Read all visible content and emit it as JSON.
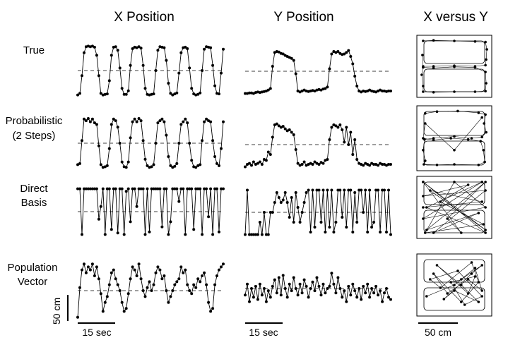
{
  "figure": {
    "column_titles": [
      "X Position",
      "Y Position",
      "X versus Y"
    ],
    "row_labels": [
      [
        "True"
      ],
      [
        "Probabilistic",
        "(2 Steps)"
      ],
      [
        "Direct",
        "Basis"
      ],
      [
        "Population",
        "Vector"
      ]
    ],
    "scale_bars": {
      "vertical": "50 cm",
      "time_x": "15 sec",
      "time_y": "15 sec",
      "space": "50 cm"
    }
  },
  "chart_data": [
    {
      "type": "line",
      "panel": "True / X Position",
      "title": "X Position",
      "x": [
        0,
        1,
        2,
        3,
        4,
        5,
        6,
        7,
        8,
        9,
        10,
        11,
        12,
        13,
        14,
        15,
        16,
        17,
        18,
        19,
        20,
        21,
        22,
        23,
        24,
        25,
        26,
        27,
        28,
        29,
        30,
        31,
        32,
        33,
        34,
        35,
        36,
        37,
        38,
        39,
        40,
        41,
        42,
        43,
        44,
        45,
        46,
        47,
        48,
        49,
        50,
        51,
        52,
        53,
        54,
        55,
        56,
        57,
        58,
        59,
        60,
        61,
        62,
        63,
        64,
        65,
        66,
        67,
        68,
        69
      ],
      "values": [
        0.02,
        0.05,
        0.4,
        0.85,
        0.97,
        0.98,
        0.97,
        0.98,
        0.96,
        0.8,
        0.4,
        0.05,
        0.02,
        0.03,
        0.04,
        0.3,
        0.8,
        0.96,
        0.97,
        0.9,
        0.55,
        0.15,
        0.03,
        0.03,
        0.1,
        0.6,
        0.93,
        0.96,
        0.95,
        0.97,
        0.94,
        0.6,
        0.15,
        0.03,
        0.02,
        0.03,
        0.04,
        0.5,
        0.9,
        0.97,
        0.96,
        0.95,
        0.7,
        0.25,
        0.05,
        0.02,
        0.04,
        0.06,
        0.45,
        0.85,
        0.95,
        0.96,
        0.93,
        0.55,
        0.15,
        0.04,
        0.02,
        0.03,
        0.06,
        0.5,
        0.92,
        0.97,
        0.96,
        0.95,
        0.6,
        0.2,
        0.05,
        0.04,
        0.45,
        0.92
      ],
      "ylim": [
        0,
        1
      ]
    },
    {
      "type": "line",
      "panel": "True / Y Position",
      "title": "Y Position",
      "x": [
        0,
        1,
        2,
        3,
        4,
        5,
        6,
        7,
        8,
        9,
        10,
        11,
        12,
        13,
        14,
        15,
        16,
        17,
        18,
        19,
        20,
        21,
        22,
        23,
        24,
        25,
        26,
        27,
        28,
        29,
        30,
        31,
        32,
        33,
        34,
        35,
        36,
        37,
        38,
        39,
        40,
        41,
        42,
        43,
        44,
        45,
        46,
        47,
        48,
        49,
        50,
        51,
        52,
        53,
        54,
        55,
        56,
        57,
        58,
        59,
        60,
        61,
        62,
        63,
        64,
        65,
        66,
        67,
        68,
        69
      ],
      "values": [
        0.05,
        0.05,
        0.06,
        0.06,
        0.05,
        0.07,
        0.08,
        0.07,
        0.08,
        0.09,
        0.1,
        0.12,
        0.15,
        0.6,
        0.88,
        0.9,
        0.89,
        0.86,
        0.85,
        0.82,
        0.8,
        0.78,
        0.76,
        0.72,
        0.45,
        0.1,
        0.08,
        0.1,
        0.12,
        0.1,
        0.09,
        0.1,
        0.11,
        0.1,
        0.12,
        0.13,
        0.12,
        0.14,
        0.15,
        0.18,
        0.55,
        0.85,
        0.9,
        0.88,
        0.9,
        0.86,
        0.84,
        0.85,
        0.88,
        0.92,
        0.8,
        0.65,
        0.4,
        0.2,
        0.1,
        0.08,
        0.1,
        0.09,
        0.1,
        0.12,
        0.1,
        0.09,
        0.08,
        0.1,
        0.12,
        0.1,
        0.1,
        0.09,
        0.1,
        0.1
      ],
      "ylim": [
        0,
        1
      ]
    },
    {
      "type": "line",
      "panel": "Probabilistic (2 Steps) / X Position",
      "x": [
        0,
        1,
        2,
        3,
        4,
        5,
        6,
        7,
        8,
        9,
        10,
        11,
        12,
        13,
        14,
        15,
        16,
        17,
        18,
        19,
        20,
        21,
        22,
        23,
        24,
        25,
        26,
        27,
        28,
        29,
        30,
        31,
        32,
        33,
        34,
        35,
        36,
        37,
        38,
        39,
        40,
        41,
        42,
        43,
        44,
        45,
        46,
        47,
        48,
        49,
        50,
        51,
        52,
        53,
        54,
        55,
        56,
        57,
        58,
        59,
        60,
        61,
        62,
        63,
        64,
        65,
        66,
        67,
        68,
        69
      ],
      "values": [
        0.1,
        0.12,
        0.55,
        0.95,
        0.92,
        0.96,
        0.9,
        0.95,
        0.88,
        0.85,
        0.45,
        0.1,
        0.05,
        0.06,
        0.08,
        0.4,
        0.85,
        0.95,
        0.92,
        0.8,
        0.5,
        0.15,
        0.06,
        0.05,
        0.15,
        0.6,
        0.9,
        0.95,
        0.9,
        0.96,
        0.92,
        0.55,
        0.2,
        0.08,
        0.05,
        0.06,
        0.1,
        0.5,
        0.88,
        0.92,
        0.95,
        0.9,
        0.65,
        0.25,
        0.08,
        0.05,
        0.07,
        0.12,
        0.5,
        0.85,
        0.9,
        0.95,
        0.88,
        0.5,
        0.18,
        0.06,
        0.05,
        0.08,
        0.1,
        0.55,
        0.9,
        0.95,
        0.92,
        0.9,
        0.55,
        0.25,
        0.12,
        0.08,
        0.4,
        0.9
      ],
      "ylim": [
        0,
        1
      ]
    },
    {
      "type": "line",
      "panel": "Probabilistic (2 Steps) / Y Position",
      "x": [
        0,
        1,
        2,
        3,
        4,
        5,
        6,
        7,
        8,
        9,
        10,
        11,
        12,
        13,
        14,
        15,
        16,
        17,
        18,
        19,
        20,
        21,
        22,
        23,
        24,
        25,
        26,
        27,
        28,
        29,
        30,
        31,
        32,
        33,
        34,
        35,
        36,
        37,
        38,
        39,
        40,
        41,
        42,
        43,
        44,
        45,
        46,
        47,
        48,
        49,
        50,
        51,
        52,
        53,
        54,
        55,
        56,
        57,
        58,
        59,
        60,
        61,
        62,
        63,
        64,
        65,
        66,
        67,
        68,
        69
      ],
      "values": [
        0.05,
        0.1,
        0.12,
        0.08,
        0.15,
        0.1,
        0.12,
        0.15,
        0.1,
        0.2,
        0.18,
        0.35,
        0.3,
        0.65,
        0.9,
        0.92,
        0.88,
        0.85,
        0.87,
        0.82,
        0.78,
        0.8,
        0.75,
        0.7,
        0.4,
        0.12,
        0.08,
        0.1,
        0.15,
        0.08,
        0.1,
        0.12,
        0.1,
        0.15,
        0.12,
        0.1,
        0.14,
        0.12,
        0.18,
        0.2,
        0.6,
        0.85,
        0.9,
        0.88,
        0.85,
        0.9,
        0.8,
        0.55,
        0.85,
        0.5,
        0.75,
        0.3,
        0.6,
        0.2,
        0.12,
        0.1,
        0.08,
        0.12,
        0.1,
        0.08,
        0.12,
        0.1,
        0.1,
        0.08,
        0.12,
        0.1,
        0.1,
        0.08,
        0.1,
        0.1
      ],
      "ylim": [
        0,
        1
      ]
    },
    {
      "type": "line",
      "panel": "Direct Basis / X Position",
      "x": [
        0,
        1,
        2,
        3,
        4,
        5,
        6,
        7,
        8,
        9,
        10,
        11,
        12,
        13,
        14,
        15,
        16,
        17,
        18,
        19,
        20,
        21,
        22,
        23,
        24,
        25,
        26,
        27,
        28,
        29,
        30,
        31,
        32,
        33,
        34,
        35,
        36,
        37,
        38,
        39,
        40,
        41,
        42,
        43,
        44,
        45,
        46,
        47,
        48,
        49,
        50,
        51,
        52,
        53,
        54,
        55,
        56,
        57,
        58,
        59,
        60,
        61,
        62,
        63,
        64,
        65,
        66,
        67,
        68,
        69
      ],
      "values": [
        0.95,
        0.95,
        0.05,
        0.95,
        0.95,
        0.95,
        0.95,
        0.95,
        0.95,
        0.95,
        0.35,
        0.6,
        0.95,
        0.05,
        0.95,
        0.95,
        0.15,
        0.95,
        0.95,
        0.08,
        0.95,
        0.95,
        0.05,
        0.9,
        0.95,
        0.3,
        0.95,
        0.95,
        0.6,
        0.95,
        0.95,
        0.95,
        0.05,
        0.95,
        0.1,
        0.95,
        0.95,
        0.95,
        0.95,
        0.95,
        0.2,
        0.95,
        0.95,
        0.05,
        0.3,
        0.95,
        0.95,
        0.95,
        0.7,
        0.95,
        0.95,
        0.05,
        0.95,
        0.95,
        0.95,
        0.15,
        0.95,
        0.95,
        0.95,
        0.05,
        0.95,
        0.95,
        0.4,
        0.95,
        0.05,
        0.95,
        0.95,
        0.1,
        0.95,
        0.95
      ],
      "ylim": [
        0,
        1
      ]
    },
    {
      "type": "line",
      "panel": "Direct Basis / Y Position",
      "x": [
        0,
        1,
        2,
        3,
        4,
        5,
        6,
        7,
        8,
        9,
        10,
        11,
        12,
        13,
        14,
        15,
        16,
        17,
        18,
        19,
        20,
        21,
        22,
        23,
        24,
        25,
        26,
        27,
        28,
        29,
        30,
        31,
        32,
        33,
        34,
        35,
        36,
        37,
        38,
        39,
        40,
        41,
        42,
        43,
        44,
        45,
        46,
        47,
        48,
        49,
        50,
        51,
        52,
        53,
        54,
        55,
        56,
        57,
        58,
        59,
        60,
        61,
        62,
        63,
        64,
        65,
        66,
        67,
        68,
        69
      ],
      "values": [
        0.05,
        0.95,
        0.05,
        0.05,
        0.05,
        0.05,
        0.05,
        0.3,
        0.05,
        0.5,
        0.05,
        0.05,
        0.5,
        0.5,
        0.7,
        0.9,
        0.8,
        0.7,
        0.75,
        0.9,
        0.7,
        0.4,
        0.8,
        0.3,
        0.9,
        0.6,
        0.3,
        0.5,
        0.7,
        0.9,
        0.95,
        0.1,
        0.95,
        0.2,
        0.95,
        0.95,
        0.3,
        0.95,
        0.1,
        0.95,
        0.2,
        0.95,
        0.1,
        0.3,
        0.95,
        0.95,
        0.4,
        0.95,
        0.2,
        0.95,
        0.95,
        0.1,
        0.9,
        0.3,
        0.95,
        0.95,
        0.5,
        0.95,
        0.1,
        0.95,
        0.2,
        0.3,
        0.95,
        0.95,
        0.1,
        0.95,
        0.95,
        0.1,
        0.95,
        0.05
      ],
      "ylim": [
        0,
        1
      ]
    },
    {
      "type": "line",
      "panel": "Population Vector / X Position",
      "x": [
        0,
        1,
        2,
        3,
        4,
        5,
        6,
        7,
        8,
        9,
        10,
        11,
        12,
        13,
        14,
        15,
        16,
        17,
        18,
        19,
        20,
        21,
        22,
        23,
        24,
        25,
        26,
        27,
        28,
        29,
        30,
        31,
        32,
        33,
        34,
        35,
        36,
        37,
        38,
        39,
        40,
        41,
        42,
        43,
        44,
        45,
        46,
        47,
        48,
        49,
        50,
        51,
        52,
        53,
        54,
        55,
        56,
        57,
        58,
        59,
        60,
        61,
        62,
        63,
        64,
        65,
        66,
        67,
        68,
        69
      ],
      "values": [
        0.05,
        0.55,
        0.85,
        0.95,
        0.8,
        0.9,
        0.85,
        0.95,
        0.75,
        0.9,
        0.7,
        0.45,
        0.15,
        0.3,
        0.4,
        0.6,
        0.8,
        0.85,
        0.7,
        0.6,
        0.5,
        0.3,
        0.15,
        0.2,
        0.45,
        0.7,
        0.9,
        0.85,
        0.75,
        0.95,
        0.7,
        0.5,
        0.4,
        0.55,
        0.65,
        0.5,
        0.6,
        0.8,
        0.9,
        0.85,
        0.7,
        0.75,
        0.5,
        0.3,
        0.4,
        0.5,
        0.6,
        0.65,
        0.7,
        0.9,
        0.8,
        0.85,
        0.6,
        0.5,
        0.45,
        0.6,
        0.55,
        0.7,
        0.65,
        0.75,
        0.8,
        0.6,
        0.3,
        0.15,
        0.2,
        0.6,
        0.75,
        0.85,
        0.9,
        0.95
      ],
      "ylim": [
        0,
        1
      ]
    },
    {
      "type": "line",
      "panel": "Population Vector / Y Position",
      "x": [
        0,
        1,
        2,
        3,
        4,
        5,
        6,
        7,
        8,
        9,
        10,
        11,
        12,
        13,
        14,
        15,
        16,
        17,
        18,
        19,
        20,
        21,
        22,
        23,
        24,
        25,
        26,
        27,
        28,
        29,
        30,
        31,
        32,
        33,
        34,
        35,
        36,
        37,
        38,
        39,
        40,
        41,
        42,
        43,
        44,
        45,
        46,
        47,
        48,
        49,
        50,
        51,
        52,
        53,
        54,
        55,
        56,
        57,
        58,
        59,
        60,
        61,
        62,
        63,
        64,
        65,
        66,
        67,
        68,
        69
      ],
      "values": [
        0.35,
        0.6,
        0.2,
        0.5,
        0.3,
        0.55,
        0.25,
        0.6,
        0.35,
        0.5,
        0.2,
        0.45,
        0.3,
        0.55,
        0.7,
        0.4,
        0.75,
        0.35,
        0.8,
        0.5,
        0.3,
        0.6,
        0.45,
        0.75,
        0.5,
        0.35,
        0.6,
        0.4,
        0.7,
        0.55,
        0.3,
        0.5,
        0.65,
        0.45,
        0.75,
        0.55,
        0.35,
        0.6,
        0.4,
        0.5,
        0.55,
        0.85,
        0.6,
        0.4,
        0.75,
        0.5,
        0.3,
        0.45,
        0.2,
        0.55,
        0.35,
        0.6,
        0.45,
        0.3,
        0.5,
        0.25,
        0.55,
        0.4,
        0.6,
        0.3,
        0.5,
        0.4,
        0.55,
        0.35,
        0.45,
        0.2,
        0.4,
        0.5,
        0.3,
        0.25
      ],
      "ylim": [
        0,
        1
      ]
    },
    {
      "type": "scatter",
      "panel": "True / X versus Y",
      "title": "X versus Y",
      "x": [
        0.05,
        0.2,
        0.5,
        0.8,
        0.95,
        0.97,
        0.96,
        0.95,
        0.8,
        0.5,
        0.2,
        0.05,
        0.03,
        0.05,
        0.05,
        0.2,
        0.5,
        0.8,
        0.95,
        0.96,
        0.95,
        0.8,
        0.5,
        0.2,
        0.05,
        0.04
      ],
      "y": [
        0.95,
        0.96,
        0.95,
        0.94,
        0.93,
        0.8,
        0.62,
        0.52,
        0.5,
        0.51,
        0.5,
        0.5,
        0.35,
        0.15,
        0.05,
        0.04,
        0.05,
        0.05,
        0.06,
        0.2,
        0.4,
        0.48,
        0.49,
        0.47,
        0.48,
        0.7
      ],
      "xlim": [
        0,
        1
      ],
      "ylim": [
        0,
        1
      ]
    },
    {
      "type": "scatter",
      "panel": "Probabilistic (2 Steps) / X versus Y",
      "x": [
        0.08,
        0.25,
        0.55,
        0.85,
        0.95,
        0.93,
        0.96,
        0.9,
        0.75,
        0.5,
        0.2,
        0.07,
        0.05,
        0.08,
        0.06,
        0.25,
        0.5,
        0.85,
        0.94,
        0.92,
        0.88,
        0.7,
        0.45,
        0.2,
        0.05,
        0.08,
        0.5,
        0.9
      ],
      "y": [
        0.92,
        0.95,
        0.96,
        0.93,
        0.9,
        0.75,
        0.6,
        0.52,
        0.5,
        0.53,
        0.5,
        0.48,
        0.3,
        0.12,
        0.06,
        0.05,
        0.06,
        0.05,
        0.1,
        0.3,
        0.45,
        0.48,
        0.5,
        0.47,
        0.5,
        0.75,
        0.3,
        0.85
      ],
      "xlim": [
        0,
        1
      ],
      "ylim": [
        0,
        1
      ]
    },
    {
      "type": "scatter",
      "panel": "Direct Basis / X versus Y",
      "x": [
        0.05,
        0.95,
        0.1,
        0.9,
        0.05,
        0.95,
        0.5,
        0.08,
        0.92,
        0.3,
        0.7,
        0.05,
        0.95,
        0.2,
        0.85,
        0.1,
        0.95,
        0.4,
        0.6,
        0.05,
        0.95,
        0.15,
        0.9,
        0.05
      ],
      "y": [
        0.95,
        0.05,
        0.5,
        0.95,
        0.3,
        0.5,
        0.95,
        0.05,
        0.2,
        0.6,
        0.9,
        0.7,
        0.8,
        0.05,
        0.4,
        0.1,
        0.95,
        0.3,
        0.05,
        0.95,
        0.1,
        0.8,
        0.6,
        0.5
      ],
      "xlim": [
        0,
        1
      ],
      "ylim": [
        0,
        1
      ]
    },
    {
      "type": "scatter",
      "panel": "Population Vector / X versus Y",
      "x": [
        0.1,
        0.5,
        0.8,
        0.9,
        0.7,
        0.4,
        0.2,
        0.6,
        0.85,
        0.75,
        0.3,
        0.15,
        0.55,
        0.9,
        0.65,
        0.45,
        0.8,
        0.7,
        0.25,
        0.6,
        0.85,
        0.5,
        0.35,
        0.75,
        0.9,
        0.6
      ],
      "y": [
        0.3,
        0.5,
        0.8,
        0.4,
        0.6,
        0.35,
        0.7,
        0.2,
        0.55,
        0.9,
        0.45,
        0.6,
        0.75,
        0.3,
        0.15,
        0.55,
        0.65,
        0.35,
        0.85,
        0.5,
        0.2,
        0.4,
        0.25,
        0.7,
        0.85,
        0.6
      ],
      "xlim": [
        0,
        1
      ],
      "ylim": [
        0,
        1
      ]
    }
  ]
}
